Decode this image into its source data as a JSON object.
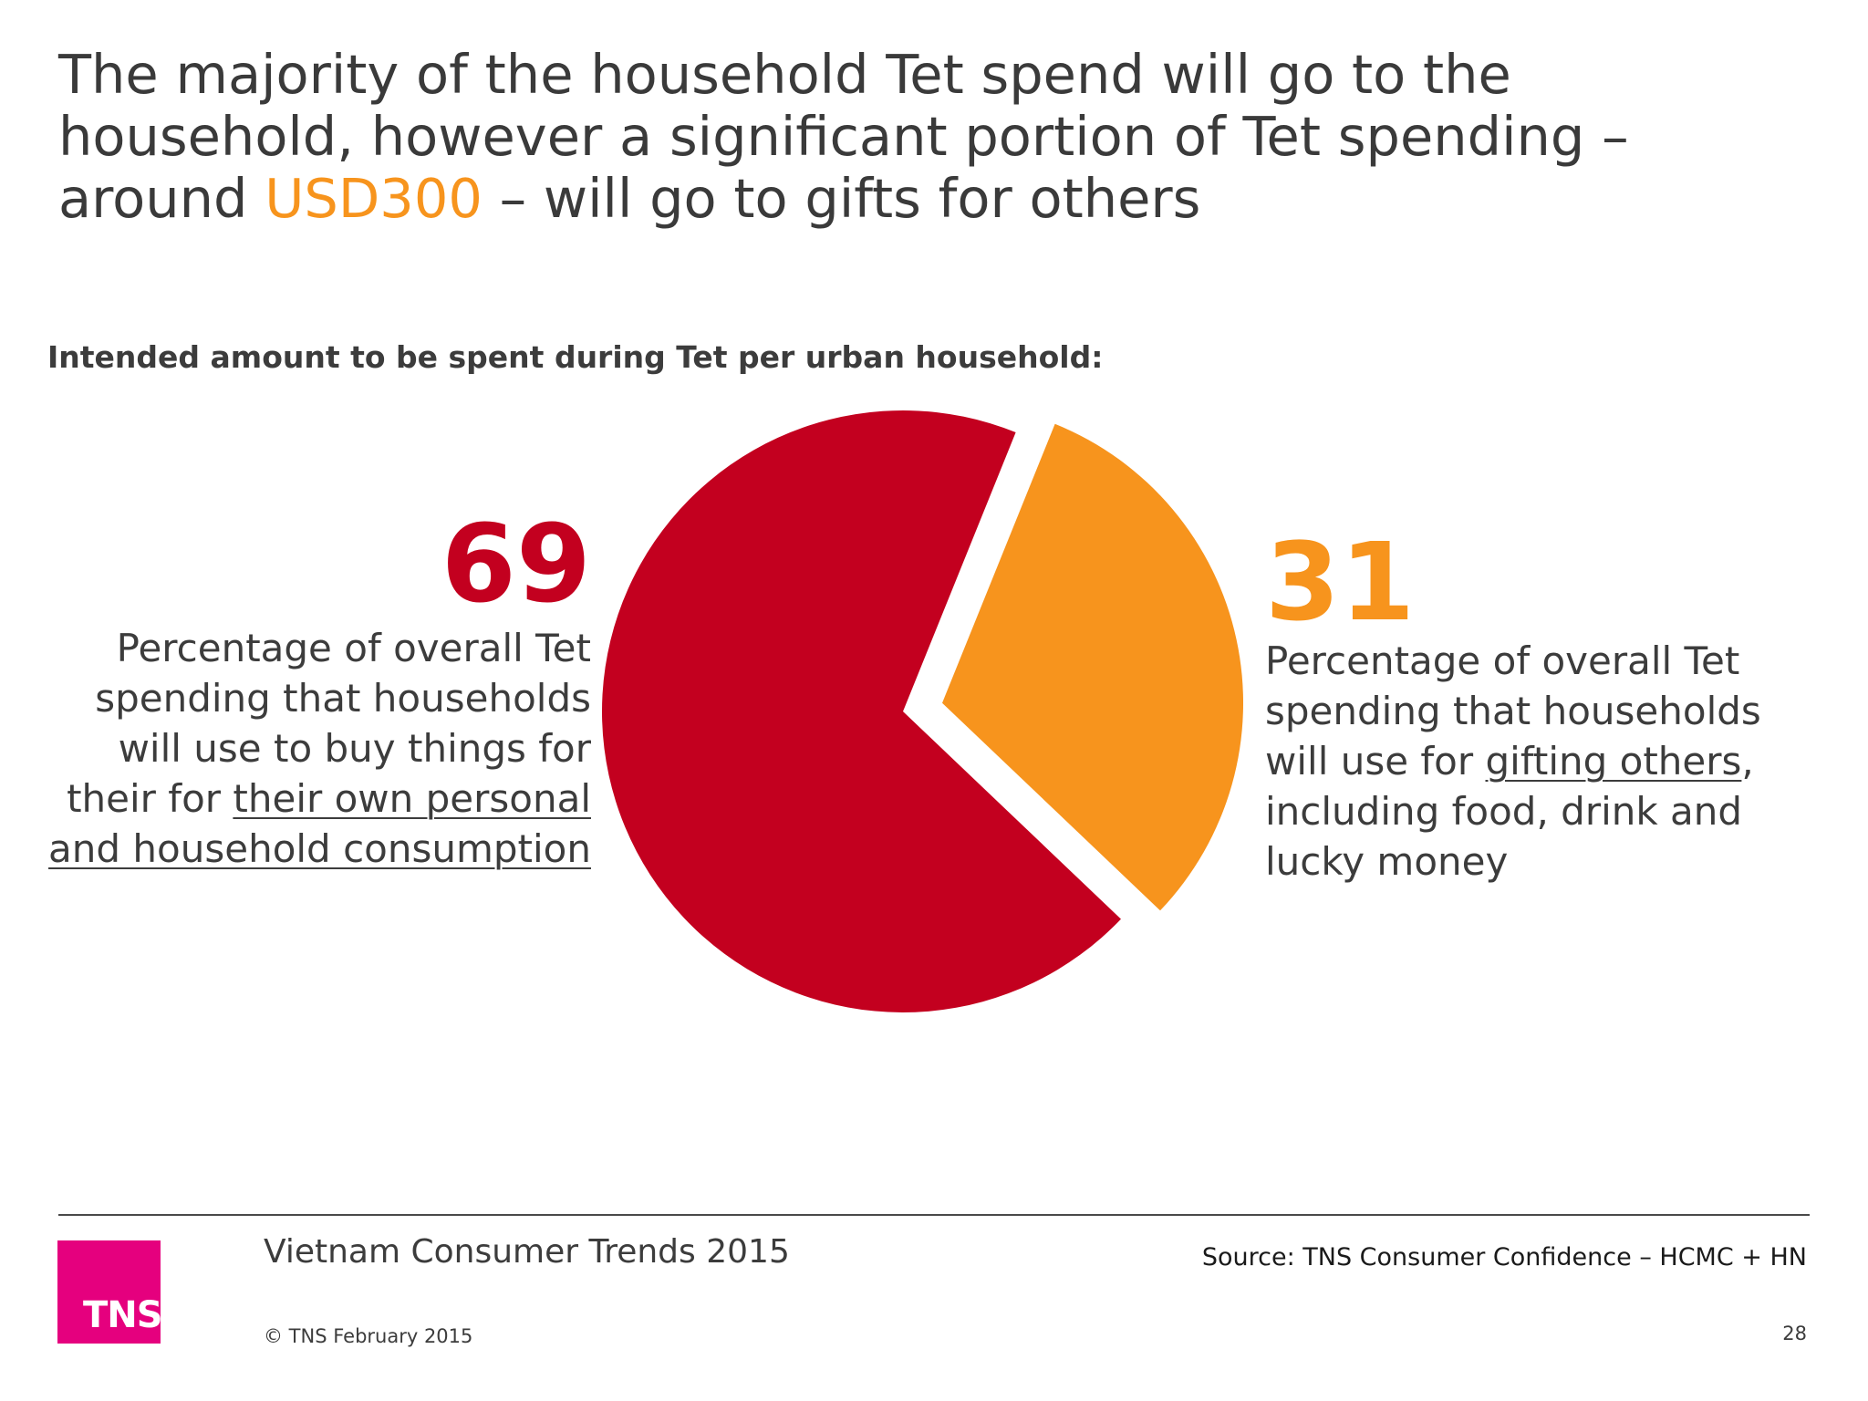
{
  "slide": {
    "headline_before": "The majority of the household Tet spend will go to the household, however a significant portion of Tet spending – around ",
    "headline_accent": "USD300",
    "headline_after": " – will go to gifts for others",
    "subtitle": "Intended amount to be spent during Tet per urban household:"
  },
  "left_label": {
    "number": "69",
    "text_plain": "Percentage of overall Tet spending that households will use to buy things for their for ",
    "text_underlined": "their own personal and household consumption"
  },
  "right_label": {
    "number": "31",
    "text_before": "Percentage of overall Tet spending that households will use for ",
    "text_underlined": "gifting others",
    "text_after": ", including food, drink and lucky money"
  },
  "footer": {
    "logo": "TNS",
    "title": "Vietnam Consumer Trends 2015",
    "copyright": "© TNS February 2015",
    "source": "Source: TNS  Consumer Confidence – HCMC + HN",
    "page_number": "28"
  },
  "colors": {
    "red": "#c3001f",
    "orange": "#f7941d",
    "accent": "#f7941d",
    "logo": "#e5007e"
  },
  "chart_data": {
    "type": "pie",
    "title": "Intended amount to be spent during Tet per urban household:",
    "categories": [
      "own personal and household consumption",
      "gifting others"
    ],
    "values": [
      69,
      31
    ],
    "colors": [
      "#c3001f",
      "#f7941d"
    ],
    "exploded": [
      false,
      true
    ]
  }
}
